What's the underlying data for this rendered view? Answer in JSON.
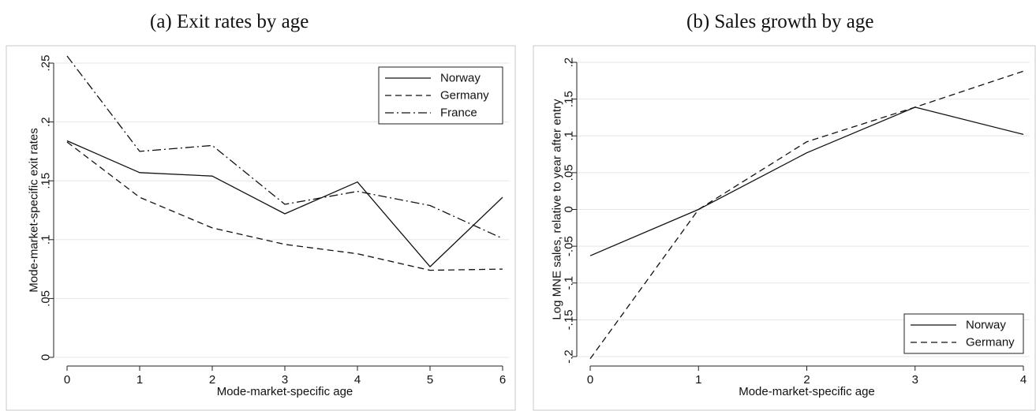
{
  "chart_data": [
    {
      "type": "line",
      "title": "(a) Exit rates by age",
      "xlabel": "Mode-market-specific age",
      "ylabel": "Mode-market-specific exit rates",
      "x": [
        0,
        1,
        2,
        3,
        4,
        5,
        6
      ],
      "xlim": [
        0,
        6
      ],
      "ylim": [
        0,
        0.25
      ],
      "xticks": [
        0,
        1,
        2,
        3,
        4,
        5,
        6
      ],
      "xtick_labels": [
        "0",
        "1",
        "2",
        "3",
        "4",
        "5",
        "6"
      ],
      "yticks": [
        0,
        0.05,
        0.1,
        0.15,
        0.2,
        0.25
      ],
      "ytick_labels": [
        "0",
        ".05",
        ".1",
        ".15",
        ".2",
        ".25"
      ],
      "grid": true,
      "legend_position": "top-right",
      "series": [
        {
          "name": "Norway",
          "style": "solid",
          "values": [
            0.184,
            0.157,
            0.154,
            0.122,
            0.149,
            0.077,
            0.136
          ]
        },
        {
          "name": "Germany",
          "style": "dashed",
          "values": [
            0.183,
            0.136,
            0.11,
            0.096,
            0.088,
            0.074,
            0.075
          ]
        },
        {
          "name": "France",
          "style": "dash-dot",
          "values": [
            0.256,
            0.175,
            0.18,
            0.13,
            0.141,
            0.129,
            0.101
          ]
        }
      ]
    },
    {
      "type": "line",
      "title": "(b) Sales growth by age",
      "xlabel": "Mode-market-specific age",
      "ylabel": "Log MNE sales, relative to year after entry",
      "x": [
        0,
        1,
        2,
        3,
        4
      ],
      "xlim": [
        0,
        4
      ],
      "ylim": [
        -0.2,
        0.2
      ],
      "xticks": [
        0,
        1,
        2,
        3,
        4
      ],
      "xtick_labels": [
        "0",
        "1",
        "2",
        "3",
        "4"
      ],
      "yticks": [
        -0.2,
        -0.15,
        -0.1,
        -0.05,
        0,
        0.05,
        0.1,
        0.15,
        0.2
      ],
      "ytick_labels": [
        "-.2",
        "-.15",
        "-.1",
        "-.05",
        "0",
        ".05",
        ".1",
        ".15",
        ".2"
      ],
      "grid": true,
      "legend_position": "bottom-right",
      "series": [
        {
          "name": "Norway",
          "style": "solid",
          "values": [
            -0.063,
            0.0,
            0.077,
            0.139,
            0.102
          ]
        },
        {
          "name": "Germany",
          "style": "dashed",
          "values": [
            -0.203,
            0.0,
            0.092,
            0.139,
            0.188
          ]
        }
      ]
    }
  ]
}
